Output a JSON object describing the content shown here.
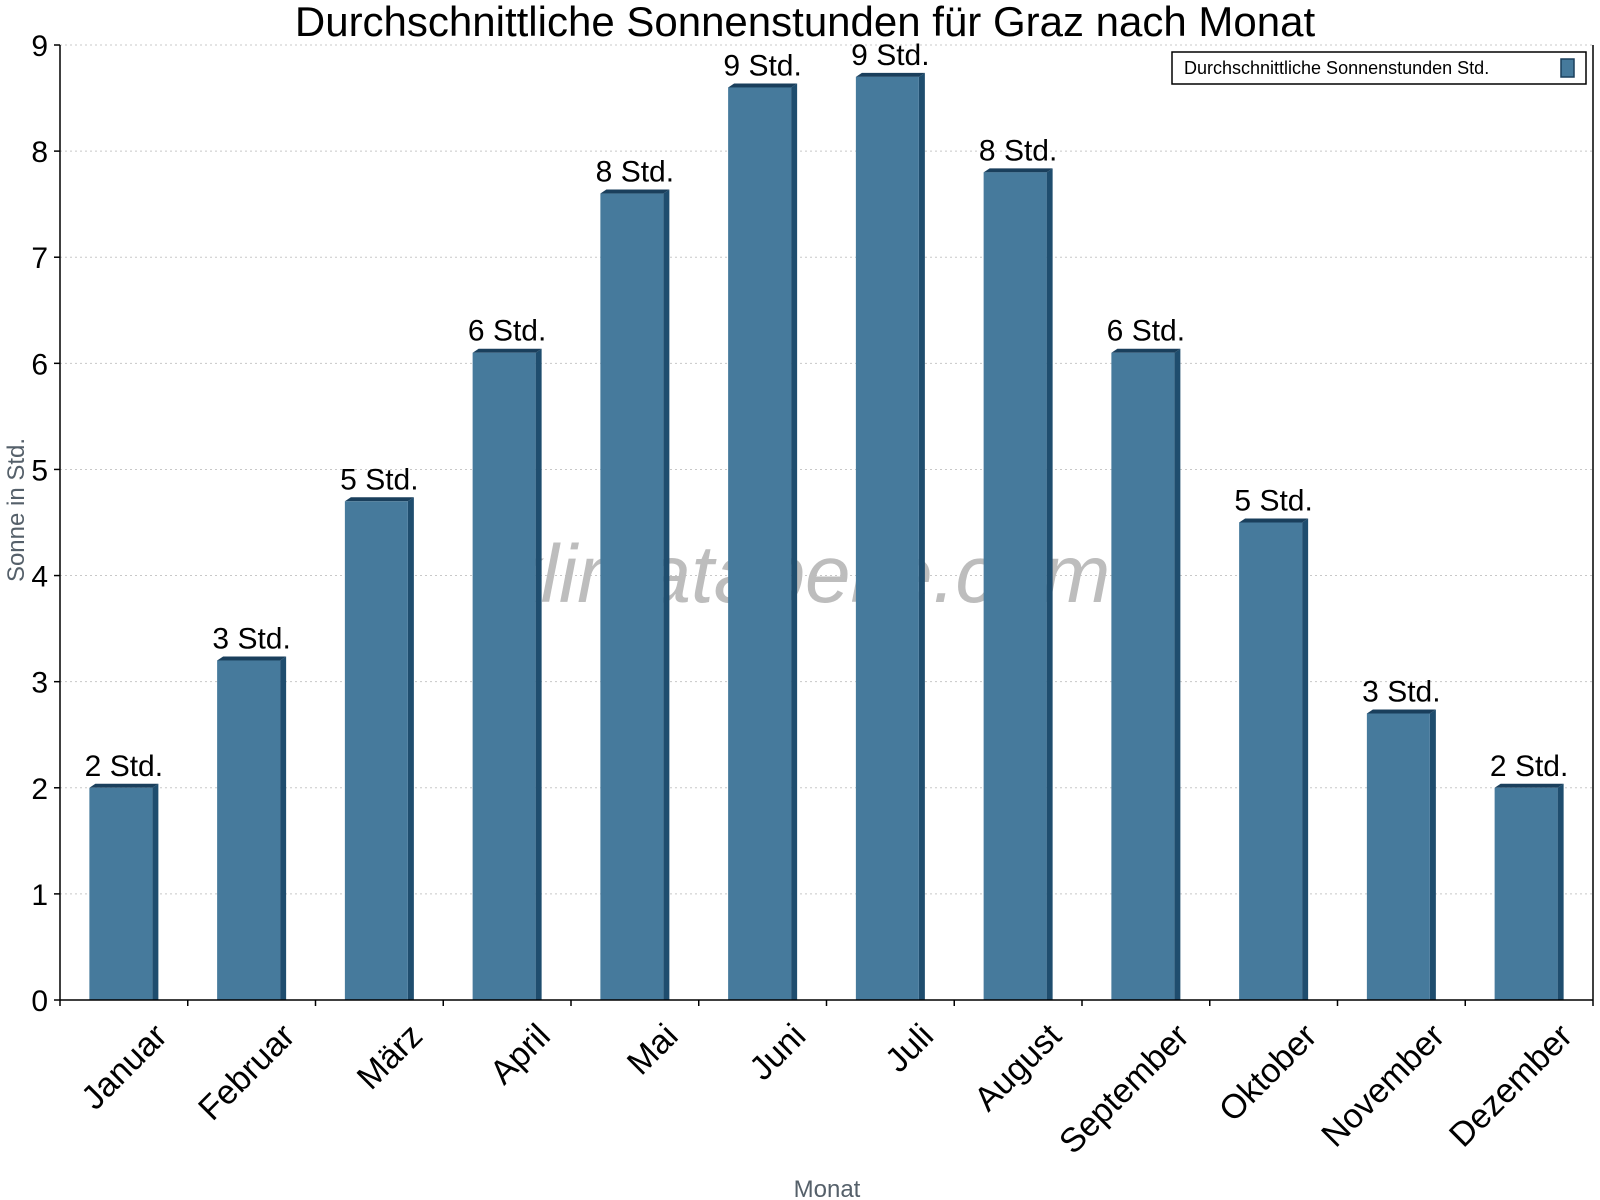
{
  "chart_data": {
    "type": "bar",
    "title": "Durchschnittliche Sonnenstunden für Graz nach Monat",
    "xlabel": "Monat",
    "ylabel": "Sonne in Std.",
    "ylim": [
      0,
      9
    ],
    "yticks": [
      "0",
      "1",
      "2",
      "3",
      "4",
      "5",
      "6",
      "7",
      "8",
      "9"
    ],
    "grid": true,
    "legend_position": "top-right",
    "watermark": "klimatabelle.com",
    "categories": [
      "Januar",
      "Februar",
      "März",
      "April",
      "Mai",
      "Juni",
      "Juli",
      "August",
      "September",
      "Oktober",
      "November",
      "Dezember"
    ],
    "series": [
      {
        "name": "Durchschnittliche Sonnenstunden Std.",
        "color": "#467a9c",
        "values": [
          2.0,
          3.2,
          4.7,
          6.1,
          7.6,
          8.6,
          8.7,
          7.8,
          6.1,
          4.5,
          2.7,
          2.0
        ],
        "labels": [
          "2 Std.",
          "3 Std.",
          "5 Std.",
          "6 Std.",
          "8 Std.",
          "9 Std.",
          "9 Std.",
          "8 Std.",
          "6 Std.",
          "5 Std.",
          "3 Std.",
          "2 Std."
        ]
      }
    ]
  }
}
